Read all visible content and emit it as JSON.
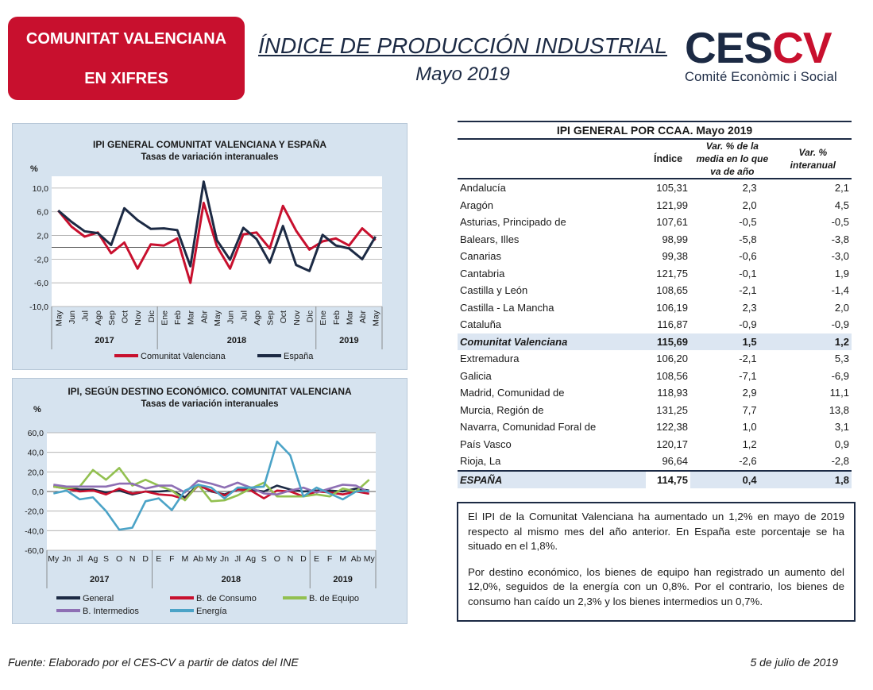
{
  "badge": {
    "line1": "COMUNITAT VALENCIANA",
    "line2": "EN XIFRES"
  },
  "header": {
    "title": "ÍNDICE DE PRODUCCIÓN INDUSTRIAL",
    "subtitle": "Mayo 2019"
  },
  "logo": {
    "ces": "CES",
    "cv": "CV",
    "tagline": "Comité Econòmic i Social",
    "colors": {
      "navy": "#1c2a44",
      "red": "#c8102e"
    }
  },
  "chart_data": [
    {
      "type": "line",
      "title": "IPI GENERAL COMUNITAT VALENCIANA Y ESPAÑA",
      "subtitle": "Tasas de variación interanuales",
      "ylabel": "%",
      "ylim": [
        -10,
        12
      ],
      "yticks": [
        "10,0",
        "6,0",
        "2,0",
        "-2,0",
        "-6,0",
        "-10,0"
      ],
      "categories": [
        "May",
        "Jun",
        "Jul",
        "Ago",
        "Sep",
        "Oct",
        "Nov",
        "Dic",
        "Ene",
        "Feb",
        "Mar",
        "Abr",
        "May",
        "Jun",
        "Jul",
        "Ago",
        "Sep",
        "Oct",
        "Nov",
        "Dic",
        "Ene",
        "Feb",
        "Mar",
        "Abr",
        "May"
      ],
      "years": [
        {
          "label": "2017",
          "from": 0,
          "to": 7
        },
        {
          "label": "2018",
          "from": 8,
          "to": 19
        },
        {
          "label": "2019",
          "from": 20,
          "to": 24
        }
      ],
      "legend_position": "bottom",
      "series": [
        {
          "name": "Comunitat Valenciana",
          "color": "#c8102e",
          "values": [
            6.2,
            3.5,
            1.8,
            2.5,
            -1.0,
            0.8,
            -3.6,
            0.5,
            0.3,
            1.5,
            -6.0,
            7.5,
            0.2,
            -3.6,
            2.2,
            2.5,
            -0.2,
            7.0,
            2.8,
            -0.4,
            1.0,
            1.5,
            0.3,
            3.2,
            1.2
          ]
        },
        {
          "name": "España",
          "color": "#1c2a44",
          "values": [
            6.2,
            4.3,
            2.7,
            2.4,
            0.4,
            6.6,
            4.6,
            3.1,
            3.2,
            2.9,
            -3.2,
            11.1,
            1.2,
            -2.1,
            3.3,
            1.4,
            -2.6,
            3.6,
            -3.0,
            -4.0,
            2.1,
            0.3,
            -0.2,
            -2.0,
            1.8
          ]
        }
      ]
    },
    {
      "type": "line",
      "title": "IPI, SEGÚN DESTINO ECONÓMICO. COMUNITAT VALENCIANA",
      "subtitle": "Tasas de variación interanuales",
      "ylabel": "%",
      "ylim": [
        -60,
        60
      ],
      "yticks": [
        "60,0",
        "40,0",
        "20,0",
        "0,0",
        "-20,0",
        "-40,0",
        "-60,0"
      ],
      "categories": [
        "My",
        "Jn",
        "Jl",
        "Ag",
        "S",
        "O",
        "N",
        "D",
        "E",
        "F",
        "M",
        "Ab",
        "My",
        "Jn",
        "Jl",
        "Ag",
        "S",
        "O",
        "N",
        "D",
        "E",
        "F",
        "M",
        "Ab",
        "My"
      ],
      "years": [
        {
          "label": "2017",
          "from": 0,
          "to": 7
        },
        {
          "label": "2018",
          "from": 8,
          "to": 19
        },
        {
          "label": "2019",
          "from": 20,
          "to": 24
        }
      ],
      "legend_position": "bottom",
      "series": [
        {
          "name": "General",
          "color": "#1c2a44",
          "values": [
            6,
            4,
            2,
            2,
            -1,
            1,
            -3,
            0,
            0,
            1,
            -6,
            7,
            0,
            -3,
            2,
            2,
            0,
            6,
            2,
            0,
            1,
            1,
            0,
            3,
            1
          ]
        },
        {
          "name": "B. de Consumo",
          "color": "#c8102e",
          "values": [
            5,
            3,
            0,
            1,
            -3,
            3,
            -2,
            0,
            -3,
            -4,
            -8,
            6,
            1,
            -4,
            2,
            1,
            -7,
            1,
            0,
            -5,
            0,
            -1,
            -3,
            0,
            -2.3
          ]
        },
        {
          "name": "B. de Equipo",
          "color": "#92c050",
          "values": [
            5,
            3,
            5,
            22,
            12,
            24,
            6,
            12,
            6,
            1,
            -9,
            7,
            -10,
            -9,
            -4,
            3,
            9,
            -5,
            -5,
            -5,
            -3,
            -5,
            3,
            0,
            12.0
          ]
        },
        {
          "name": "B. Intermedios",
          "color": "#8e6fb4",
          "values": [
            7,
            5,
            5,
            5,
            5,
            8,
            8,
            3,
            6,
            6,
            -1,
            11,
            8,
            4,
            9,
            4,
            -2,
            -3,
            1,
            4,
            -1,
            3,
            7,
            6,
            -0.7
          ]
        },
        {
          "name": "Energía",
          "color": "#4ba3c7",
          "values": [
            -2,
            1,
            -8,
            -6,
            -20,
            -39,
            -37,
            -10,
            -7,
            -19,
            1,
            7,
            4,
            -7,
            4,
            4,
            5,
            51,
            37,
            -5,
            4,
            -2,
            -8,
            0,
            0.8
          ]
        }
      ]
    }
  ],
  "table": {
    "title": "IPI GENERAL POR CCAA. Mayo 2019",
    "headers": [
      "",
      "Índice",
      "Var. % de la media en lo que va de año",
      "Var. % interanual"
    ],
    "rows": [
      [
        "Andalucía",
        "105,31",
        "2,3",
        "2,1"
      ],
      [
        "Aragón",
        "121,99",
        "2,0",
        "4,5"
      ],
      [
        "Asturias, Principado de",
        "107,61",
        "-0,5",
        "-0,5"
      ],
      [
        "Balears, Illes",
        "98,99",
        "-5,8",
        "-3,8"
      ],
      [
        "Canarias",
        "99,38",
        "-0,6",
        "-3,0"
      ],
      [
        "Cantabria",
        "121,75",
        "-0,1",
        "1,9"
      ],
      [
        "Castilla y León",
        "108,65",
        "-2,1",
        "-1,4"
      ],
      [
        "Castilla - La Mancha",
        "106,19",
        "2,3",
        "2,0"
      ],
      [
        "Cataluña",
        "116,87",
        "-0,9",
        "-0,9"
      ],
      [
        "Comunitat Valenciana",
        "115,69",
        "1,5",
        "1,2"
      ],
      [
        "Extremadura",
        "106,20",
        "-2,1",
        "5,3"
      ],
      [
        "Galicia",
        "108,56",
        "-7,1",
        "-6,9"
      ],
      [
        "Madrid, Comunidad de",
        "118,93",
        "2,9",
        "11,1"
      ],
      [
        "Murcia, Región de",
        "131,25",
        "7,7",
        "13,8"
      ],
      [
        "Navarra, Comunidad Foral de",
        "122,38",
        "1,0",
        "3,1"
      ],
      [
        "País Vasco",
        "120,17",
        "1,2",
        "0,9"
      ],
      [
        "Rioja, La",
        "96,64",
        "-2,6",
        "-2,8"
      ]
    ],
    "total": [
      "ESPAÑA",
      "114,75",
      "0,4",
      "1,8"
    ]
  },
  "summary": {
    "p1": "El IPI de la Comunitat Valenciana ha aumentado un 1,2% en mayo de 2019 respecto al mismo mes del año anterior. En España este porcentaje se ha situado en el 1,8%.",
    "p2": "Por destino económico, los bienes de equipo han registrado un aumento del 12,0%, seguidos de la energía con un 0,8%. Por el contrario, los bienes de consumo han caído un 2,3% y los bienes intermedios un 0,7%."
  },
  "footer": {
    "source": "Fuente: Elaborado por el CES-CV a partir de datos del INE",
    "date": "5 de julio de 2019"
  }
}
